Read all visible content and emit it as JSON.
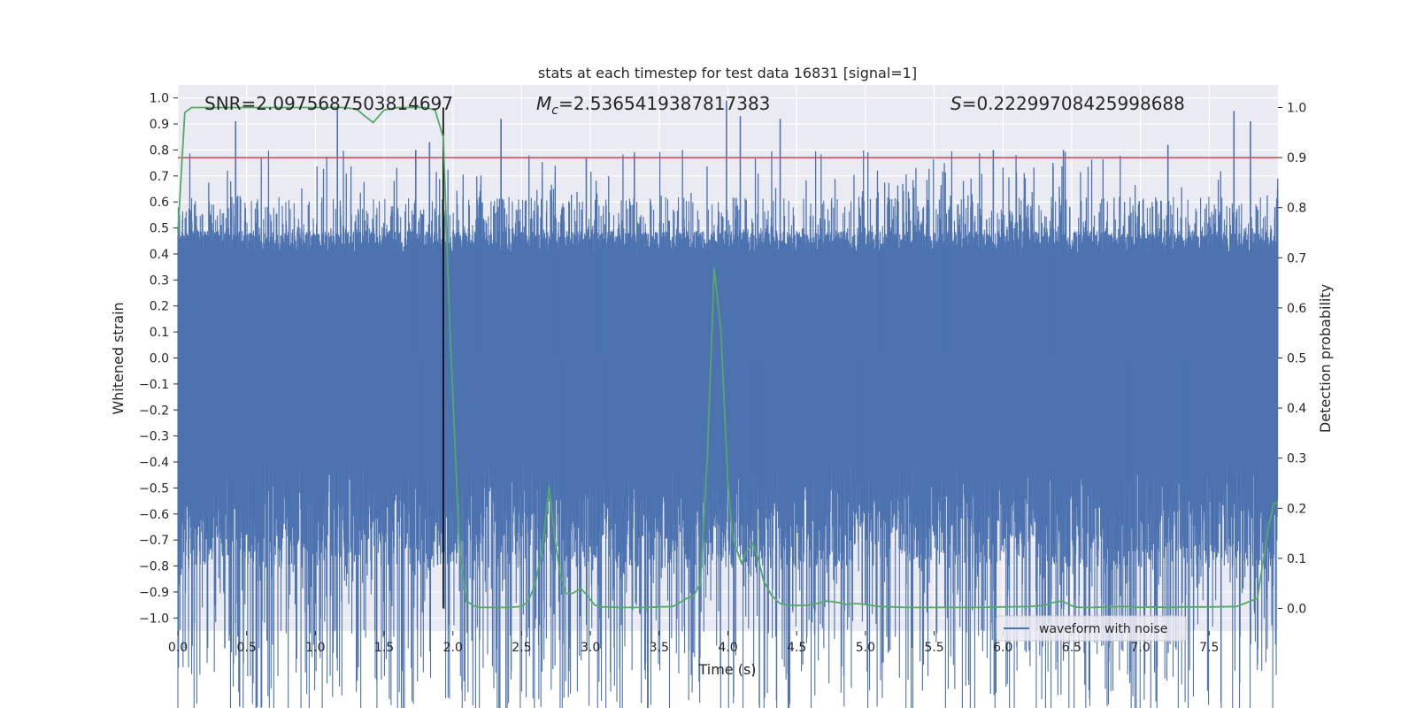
{
  "chart_data": {
    "type": "line",
    "title": "stats at each timestep for test data 16831 [signal=1]",
    "xlabel": "Time (s)",
    "ylabel": "Whitened strain",
    "y2label": "Detection probability",
    "xlim": [
      0.0,
      8.0
    ],
    "ylim": [
      -1.05,
      1.05
    ],
    "y2lim": [
      -0.045,
      1.045
    ],
    "x_ticks": [
      "0.0",
      "0.5",
      "1.0",
      "1.5",
      "2.0",
      "2.5",
      "3.0",
      "3.5",
      "4.0",
      "4.5",
      "5.0",
      "5.5",
      "6.0",
      "6.5",
      "7.0",
      "7.5"
    ],
    "y_ticks": [
      "1.0",
      "0.9",
      "0.8",
      "0.7",
      "0.6",
      "0.5",
      "0.4",
      "0.3",
      "0.2",
      "0.1",
      "0.0",
      "-0.1",
      "-0.2",
      "-0.3",
      "-0.4",
      "-0.5",
      "-0.6",
      "-0.7",
      "-0.8",
      "-0.9",
      "-1.0"
    ],
    "y2_ticks": [
      "1.0",
      "0.9",
      "0.8",
      "0.7",
      "0.6",
      "0.5",
      "0.4",
      "0.3",
      "0.2",
      "0.1",
      "0.0"
    ],
    "grid": true,
    "legend_position": "lower-right",
    "annotations": {
      "snr": "SNR=2.0975687503814697",
      "mc_prefix": "M",
      "mc_sub": "c",
      "mc_value": "=2.5365419387817383",
      "s_prefix": "S",
      "s_value": "=0.22299708425998688"
    },
    "threshold": {
      "axis": "right",
      "value": 0.9,
      "color": "#c44e52"
    },
    "merger_time": 1.93,
    "series": [
      {
        "name": "waveform with noise",
        "axis": "left",
        "color": "#4c72b0",
        "kind": "noise-strain",
        "notable_spikes": [
          {
            "x": 0.27,
            "y": -0.95
          },
          {
            "x": 0.42,
            "y": 0.91
          },
          {
            "x": 1.0,
            "y": -0.94
          },
          {
            "x": 1.16,
            "y": 0.96
          },
          {
            "x": 1.23,
            "y": -0.83
          },
          {
            "x": 1.73,
            "y": 0.8
          },
          {
            "x": 1.83,
            "y": 0.83
          },
          {
            "x": 2.35,
            "y": 0.92
          },
          {
            "x": 2.42,
            "y": -0.9
          },
          {
            "x": 2.97,
            "y": 0.77
          },
          {
            "x": 3.99,
            "y": 0.99
          },
          {
            "x": 4.09,
            "y": 0.93
          },
          {
            "x": 4.38,
            "y": 0.92
          },
          {
            "x": 5.0,
            "y": -0.95
          },
          {
            "x": 5.93,
            "y": 0.8
          },
          {
            "x": 6.44,
            "y": 0.8
          },
          {
            "x": 7.2,
            "y": 0.82
          },
          {
            "x": 7.68,
            "y": 0.95
          },
          {
            "x": 7.8,
            "y": 0.91
          }
        ],
        "envelope": {
          "typical_pos": 0.62,
          "typical_neg": -0.62,
          "dense_pos": 0.4,
          "dense_neg": -0.4
        }
      },
      {
        "name": "detection probability",
        "axis": "right",
        "color": "#55a868",
        "x": [
          0.0,
          0.05,
          0.1,
          0.2,
          0.4,
          0.6,
          0.8,
          1.0,
          1.2,
          1.3,
          1.35,
          1.42,
          1.5,
          1.6,
          1.7,
          1.8,
          1.87,
          1.93,
          1.98,
          2.05,
          2.1,
          2.15,
          2.2,
          2.3,
          2.4,
          2.5,
          2.55,
          2.6,
          2.65,
          2.7,
          2.74,
          2.78,
          2.82,
          2.87,
          2.93,
          2.97,
          3.03,
          3.08,
          3.15,
          3.2,
          3.3,
          3.4,
          3.5,
          3.6,
          3.7,
          3.75,
          3.8,
          3.85,
          3.9,
          3.95,
          4.0,
          4.03,
          4.06,
          4.1,
          4.13,
          4.18,
          4.22,
          4.26,
          4.32,
          4.38,
          4.43,
          4.5,
          4.57,
          4.65,
          4.72,
          4.8,
          4.86,
          4.93,
          5.0,
          5.1,
          5.2,
          5.3,
          5.5,
          5.8,
          6.0,
          6.2,
          6.3,
          6.37,
          6.43,
          6.48,
          6.52,
          6.58,
          6.65,
          6.75,
          6.9,
          7.0,
          7.1,
          7.2,
          7.3,
          7.5,
          7.7,
          7.85,
          7.93,
          7.97,
          8.0
        ],
        "y": [
          0.75,
          0.99,
          1.0,
          1.0,
          1.0,
          1.0,
          1.0,
          1.0,
          1.0,
          0.997,
          0.985,
          0.97,
          0.995,
          1.0,
          1.0,
          1.0,
          0.995,
          0.94,
          0.55,
          0.11,
          0.015,
          0.005,
          0.002,
          0.002,
          0.002,
          0.004,
          0.015,
          0.05,
          0.12,
          0.245,
          0.14,
          0.07,
          0.03,
          0.03,
          0.04,
          0.028,
          0.007,
          0.003,
          0.003,
          0.002,
          0.002,
          0.002,
          0.003,
          0.004,
          0.02,
          0.025,
          0.05,
          0.3,
          0.68,
          0.55,
          0.25,
          0.15,
          0.12,
          0.09,
          0.11,
          0.13,
          0.1,
          0.055,
          0.025,
          0.01,
          0.007,
          0.006,
          0.006,
          0.01,
          0.015,
          0.012,
          0.008,
          0.01,
          0.008,
          0.004,
          0.003,
          0.002,
          0.002,
          0.002,
          0.003,
          0.004,
          0.006,
          0.012,
          0.015,
          0.008,
          0.003,
          0.002,
          0.002,
          0.003,
          0.004,
          0.002,
          0.003,
          0.002,
          0.003,
          0.003,
          0.004,
          0.02,
          0.16,
          0.21,
          0.21
        ]
      }
    ]
  }
}
